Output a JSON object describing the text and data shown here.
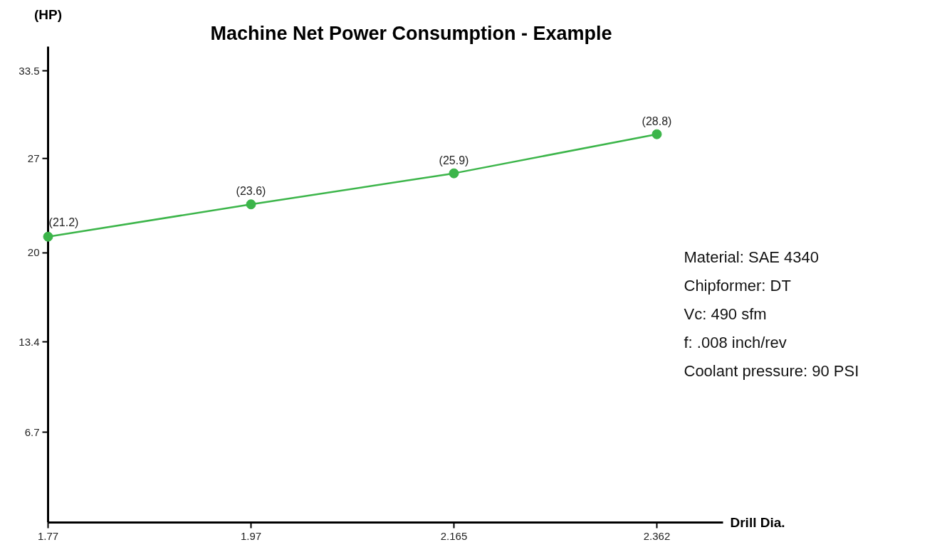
{
  "chart_data": {
    "type": "line",
    "title": "Machine Net Power Consumption - Example",
    "xlabel": "Drill Dia.",
    "ylabel": "(HP)",
    "categories": [
      "1.77",
      "1.97",
      "2.165",
      "2.362"
    ],
    "series": [
      {
        "color": "#3cb54a",
        "values": [
          21.2,
          23.6,
          25.9,
          28.8
        ],
        "value_labels": [
          "(21.2)",
          "(23.6)",
          "(25.9)",
          "(28.8)"
        ]
      }
    ],
    "ylim": [
      0,
      35.3
    ],
    "yticks": [
      6.7,
      13.4,
      20,
      27,
      33.5
    ],
    "marker": "circle",
    "grid": false,
    "annotations": [
      "Material: SAE 4340",
      "Chipformer: DT",
      "Vc: 490 sfm",
      "f: .008 inch/rev",
      "Coolant pressure: 90 PSI"
    ]
  }
}
